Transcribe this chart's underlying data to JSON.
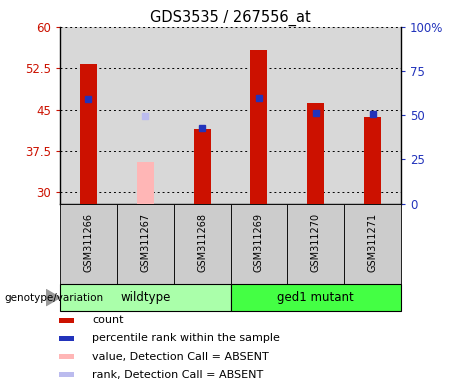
{
  "title": "GDS3535 / 267556_at",
  "samples": [
    "GSM311266",
    "GSM311267",
    "GSM311268",
    "GSM311269",
    "GSM311270",
    "GSM311271"
  ],
  "count_values": [
    53.2,
    null,
    41.5,
    55.8,
    46.2,
    43.7
  ],
  "count_absent_values": [
    null,
    35.5,
    null,
    null,
    null,
    null
  ],
  "percentile_values": [
    59.0,
    null,
    43.0,
    60.0,
    51.5,
    50.5
  ],
  "percentile_absent_values": [
    null,
    49.5,
    null,
    null,
    null,
    null
  ],
  "ylim_left": [
    28.0,
    60.0
  ],
  "ylim_right": [
    0,
    100
  ],
  "yticks_left": [
    30.0,
    37.5,
    45.0,
    52.5,
    60.0
  ],
  "ytick_labels_left": [
    "30",
    "37.5",
    "45",
    "52.5",
    "60"
  ],
  "yticks_right": [
    0,
    25,
    50,
    75,
    100
  ],
  "ytick_labels_right": [
    "0",
    "25",
    "50",
    "75",
    "100%"
  ],
  "count_color": "#cc1100",
  "count_absent_color": "#ffb6b6",
  "percentile_color": "#2233bb",
  "percentile_absent_color": "#bbbbee",
  "bar_width": 0.3,
  "bg_color": "#d8d8d8",
  "ylabel_left_color": "#cc1100",
  "ylabel_right_color": "#2233bb",
  "genotype_label": "genotype/variation",
  "wildtype_color": "#aaffaa",
  "mutant_color": "#44ff44",
  "legend_items": [
    {
      "label": "count",
      "color": "#cc1100"
    },
    {
      "label": "percentile rank within the sample",
      "color": "#2233bb"
    },
    {
      "label": "value, Detection Call = ABSENT",
      "color": "#ffb6b6"
    },
    {
      "label": "rank, Detection Call = ABSENT",
      "color": "#bbbbee"
    }
  ]
}
